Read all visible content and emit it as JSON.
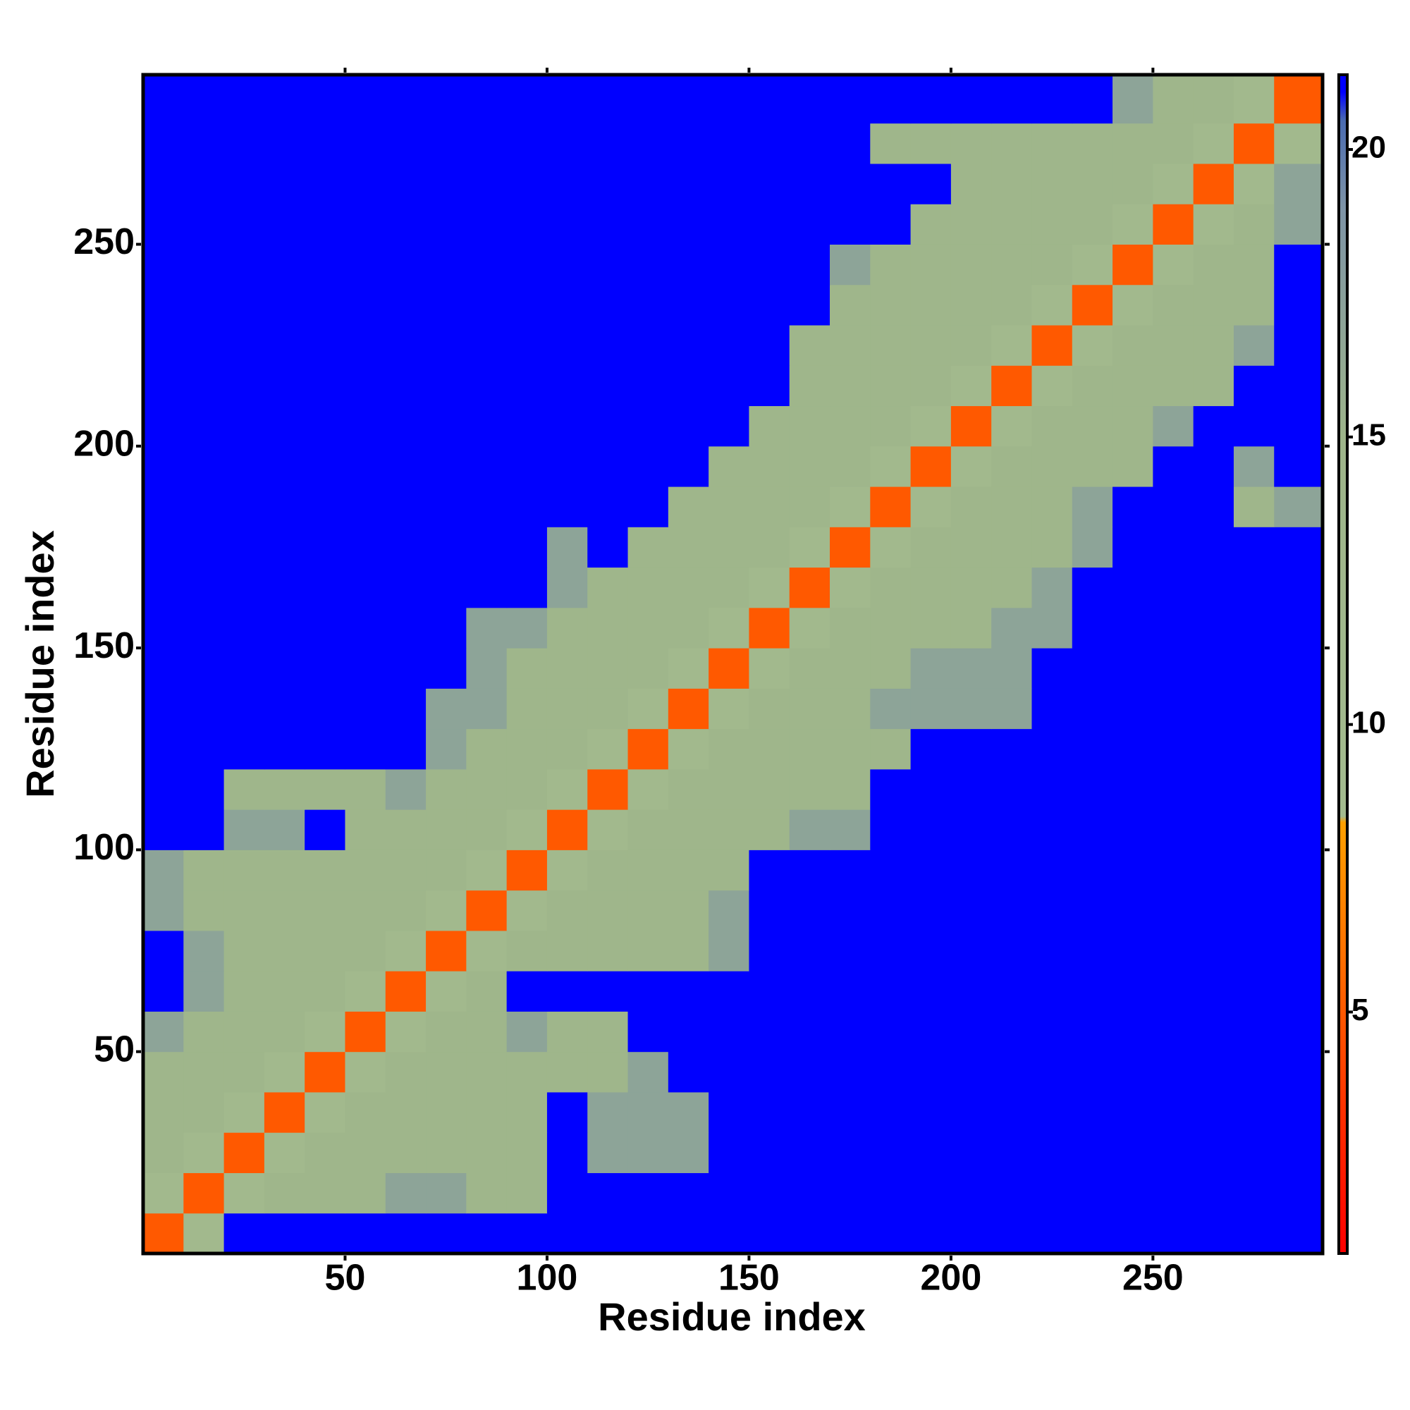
{
  "chart_data": {
    "type": "heatmap",
    "x_label": "Residue index",
    "y_label": "Residue index",
    "xlim": [
      0,
      292
    ],
    "ylim": [
      0,
      292
    ],
    "xticks": [
      50,
      100,
      150,
      200,
      250
    ],
    "yticks": [
      50,
      100,
      150,
      200,
      250
    ],
    "x_bins": [
      0,
      10,
      20,
      30,
      40,
      50,
      60,
      70,
      80,
      90,
      100,
      110,
      120,
      130,
      140,
      150,
      160,
      170,
      180,
      190,
      200,
      210,
      220,
      230,
      240,
      250,
      260,
      270,
      280,
      292
    ],
    "y_bins": [
      0,
      10,
      20,
      30,
      40,
      50,
      60,
      70,
      80,
      90,
      100,
      110,
      120,
      130,
      140,
      150,
      160,
      170,
      180,
      190,
      200,
      210,
      220,
      230,
      240,
      250,
      260,
      270,
      280,
      292
    ],
    "z": [
      [
        5,
        10,
        21,
        21,
        21,
        21,
        21,
        21,
        21,
        21,
        21,
        21,
        21,
        21,
        21,
        21,
        21,
        21,
        21,
        21,
        21,
        21,
        21,
        21,
        21,
        21,
        21,
        21,
        21
      ],
      [
        10,
        5,
        10,
        13,
        13,
        13,
        17,
        17,
        13,
        13,
        21,
        21,
        21,
        21,
        21,
        21,
        21,
        21,
        21,
        21,
        21,
        21,
        21,
        21,
        21,
        21,
        21,
        21,
        21
      ],
      [
        13,
        10,
        5,
        10,
        13,
        13,
        13,
        13,
        13,
        13,
        21,
        17,
        17,
        17,
        21,
        21,
        21,
        21,
        21,
        21,
        21,
        21,
        21,
        21,
        21,
        21,
        21,
        21,
        21
      ],
      [
        13,
        13,
        10,
        5,
        10,
        13,
        13,
        13,
        13,
        13,
        21,
        17,
        17,
        17,
        21,
        21,
        21,
        21,
        21,
        21,
        21,
        21,
        21,
        21,
        21,
        21,
        21,
        21,
        21
      ],
      [
        13,
        13,
        13,
        10,
        5,
        10,
        13,
        13,
        13,
        13,
        13,
        13,
        17,
        21,
        21,
        21,
        21,
        21,
        21,
        21,
        21,
        21,
        21,
        21,
        21,
        21,
        21,
        21,
        21
      ],
      [
        17,
        13,
        13,
        13,
        10,
        5,
        10,
        13,
        13,
        17,
        13,
        13,
        21,
        21,
        21,
        21,
        21,
        21,
        21,
        21,
        21,
        21,
        21,
        21,
        21,
        21,
        21,
        21,
        21
      ],
      [
        21,
        17,
        13,
        13,
        13,
        10,
        5,
        10,
        13,
        21,
        21,
        21,
        21,
        21,
        21,
        21,
        21,
        21,
        21,
        21,
        21,
        21,
        21,
        21,
        21,
        21,
        21,
        21,
        21
      ],
      [
        21,
        17,
        13,
        13,
        13,
        13,
        10,
        5,
        10,
        13,
        13,
        13,
        13,
        13,
        17,
        21,
        21,
        21,
        21,
        21,
        21,
        21,
        21,
        21,
        21,
        21,
        21,
        21,
        21
      ],
      [
        17,
        13,
        13,
        13,
        13,
        13,
        13,
        10,
        5,
        10,
        13,
        13,
        13,
        13,
        17,
        21,
        21,
        21,
        21,
        21,
        21,
        21,
        21,
        21,
        21,
        21,
        21,
        21,
        21
      ],
      [
        17,
        13,
        13,
        13,
        13,
        13,
        13,
        13,
        10,
        5,
        10,
        13,
        13,
        13,
        13,
        21,
        21,
        21,
        21,
        21,
        21,
        21,
        21,
        21,
        21,
        21,
        21,
        21,
        21
      ],
      [
        21,
        21,
        17,
        17,
        21,
        13,
        13,
        13,
        13,
        10,
        5,
        10,
        13,
        13,
        13,
        13,
        17,
        17,
        21,
        21,
        21,
        21,
        21,
        21,
        21,
        21,
        21,
        21,
        21
      ],
      [
        21,
        21,
        13,
        13,
        13,
        13,
        17,
        13,
        13,
        13,
        10,
        5,
        10,
        13,
        13,
        13,
        13,
        13,
        21,
        21,
        21,
        21,
        21,
        21,
        21,
        21,
        21,
        21,
        21
      ],
      [
        21,
        21,
        21,
        21,
        21,
        21,
        21,
        17,
        13,
        13,
        13,
        10,
        5,
        10,
        13,
        13,
        13,
        13,
        13,
        21,
        21,
        21,
        21,
        21,
        21,
        21,
        21,
        21,
        21
      ],
      [
        21,
        21,
        21,
        21,
        21,
        21,
        21,
        17,
        17,
        13,
        13,
        13,
        10,
        5,
        10,
        13,
        13,
        13,
        17,
        17,
        17,
        17,
        21,
        21,
        21,
        21,
        21,
        21,
        21
      ],
      [
        21,
        21,
        21,
        21,
        21,
        21,
        21,
        21,
        17,
        13,
        13,
        13,
        13,
        10,
        5,
        10,
        13,
        13,
        13,
        17,
        17,
        17,
        21,
        21,
        21,
        21,
        21,
        21,
        21
      ],
      [
        21,
        21,
        21,
        21,
        21,
        21,
        21,
        21,
        17,
        17,
        13,
        13,
        13,
        13,
        10,
        5,
        10,
        13,
        13,
        13,
        13,
        17,
        17,
        21,
        21,
        21,
        21,
        21,
        21
      ],
      [
        21,
        21,
        21,
        21,
        21,
        21,
        21,
        21,
        21,
        21,
        17,
        13,
        13,
        13,
        13,
        10,
        5,
        10,
        13,
        13,
        13,
        13,
        17,
        21,
        21,
        21,
        21,
        21,
        21
      ],
      [
        21,
        21,
        21,
        21,
        21,
        21,
        21,
        21,
        21,
        21,
        17,
        21,
        13,
        13,
        13,
        13,
        10,
        5,
        10,
        13,
        13,
        13,
        13,
        17,
        21,
        21,
        21,
        21,
        21
      ],
      [
        21,
        21,
        21,
        21,
        21,
        21,
        21,
        21,
        21,
        21,
        21,
        21,
        21,
        13,
        13,
        13,
        13,
        10,
        5,
        10,
        13,
        13,
        13,
        17,
        21,
        21,
        21,
        13,
        17
      ],
      [
        21,
        21,
        21,
        21,
        21,
        21,
        21,
        21,
        21,
        21,
        21,
        21,
        21,
        21,
        13,
        13,
        13,
        13,
        10,
        5,
        10,
        13,
        13,
        13,
        13,
        21,
        21,
        17,
        21
      ],
      [
        21,
        21,
        21,
        21,
        21,
        21,
        21,
        21,
        21,
        21,
        21,
        21,
        21,
        21,
        21,
        13,
        13,
        13,
        13,
        10,
        5,
        10,
        13,
        13,
        13,
        17,
        21,
        21,
        21
      ],
      [
        21,
        21,
        21,
        21,
        21,
        21,
        21,
        21,
        21,
        21,
        21,
        21,
        21,
        21,
        21,
        21,
        13,
        13,
        13,
        13,
        10,
        5,
        10,
        13,
        13,
        13,
        13,
        21,
        21
      ],
      [
        21,
        21,
        21,
        21,
        21,
        21,
        21,
        21,
        21,
        21,
        21,
        21,
        21,
        21,
        21,
        21,
        13,
        13,
        13,
        13,
        13,
        10,
        5,
        10,
        13,
        13,
        13,
        17,
        21
      ],
      [
        21,
        21,
        21,
        21,
        21,
        21,
        21,
        21,
        21,
        21,
        21,
        21,
        21,
        21,
        21,
        21,
        21,
        13,
        13,
        13,
        13,
        13,
        10,
        5,
        10,
        13,
        13,
        13,
        21
      ],
      [
        21,
        21,
        21,
        21,
        21,
        21,
        21,
        21,
        21,
        21,
        21,
        21,
        21,
        21,
        21,
        21,
        21,
        17,
        13,
        13,
        13,
        13,
        13,
        10,
        5,
        10,
        13,
        13,
        21
      ],
      [
        21,
        21,
        21,
        21,
        21,
        21,
        21,
        21,
        21,
        21,
        21,
        21,
        21,
        21,
        21,
        21,
        21,
        21,
        21,
        13,
        13,
        13,
        13,
        13,
        10,
        5,
        10,
        13,
        17
      ],
      [
        21,
        21,
        21,
        21,
        21,
        21,
        21,
        21,
        21,
        21,
        21,
        21,
        21,
        21,
        21,
        21,
        21,
        21,
        21,
        21,
        13,
        13,
        13,
        13,
        13,
        10,
        5,
        10,
        17
      ],
      [
        21,
        21,
        21,
        21,
        21,
        21,
        21,
        21,
        21,
        21,
        21,
        21,
        21,
        21,
        21,
        21,
        21,
        21,
        13,
        13,
        13,
        13,
        13,
        13,
        13,
        13,
        10,
        5,
        10
      ],
      [
        21,
        21,
        21,
        21,
        21,
        21,
        21,
        21,
        21,
        21,
        21,
        21,
        21,
        21,
        21,
        21,
        21,
        21,
        21,
        21,
        21,
        21,
        21,
        21,
        17,
        13,
        13,
        10,
        5
      ]
    ],
    "colorbar": {
      "lim": [
        0.8,
        21.3
      ],
      "ticks": [
        5,
        10,
        15,
        20
      ],
      "colormap": [
        [
          0.8,
          "#ff0000"
        ],
        [
          3,
          "#ff2a00"
        ],
        [
          6,
          "#ff7000"
        ],
        [
          8.3,
          "#ffa000"
        ],
        [
          8.4,
          "#a3bb8e"
        ],
        [
          15,
          "#9db48a"
        ],
        [
          19,
          "#7d93a6"
        ],
        [
          20.5,
          "#4a6bb0"
        ],
        [
          21,
          "#0000ff"
        ],
        [
          21.3,
          "#0000ff"
        ]
      ]
    }
  }
}
